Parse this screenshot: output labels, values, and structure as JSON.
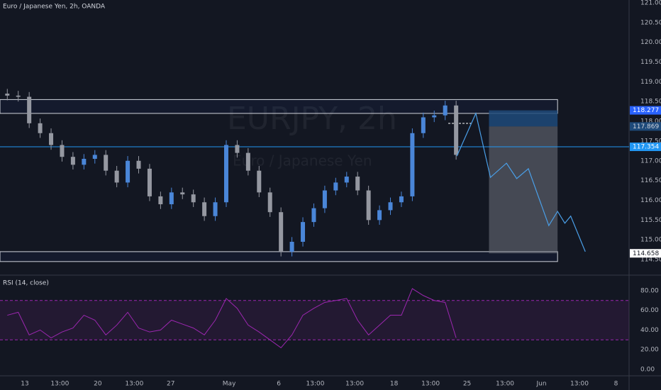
{
  "chart_data": [
    {
      "type": "candlestick",
      "title": "Euro / Japanese Yen, 2h, OANDA",
      "watermark": "EURJPY, 2h",
      "watermark_subtitle": "Euro / Japanese Yen",
      "x": [
        -1.2,
        -0.45,
        0.3,
        1.05,
        1.8,
        2.55,
        3.3,
        4.05,
        4.8,
        5.55,
        6.3,
        7.05,
        7.8,
        8.55,
        9.3,
        10.05,
        10.8,
        11.55,
        12.3,
        13.05,
        13.8,
        14.55,
        15.3,
        16.05,
        16.8,
        17.55,
        18.3,
        19.05,
        19.8,
        20.55,
        21.3,
        22.05,
        22.8,
        23.55,
        24.3,
        25.05,
        25.8,
        26.55,
        27.3,
        28.05,
        28.8,
        29.55
      ],
      "open": [
        118.7,
        118.65,
        118.62,
        117.95,
        117.7,
        117.4,
        117.1,
        116.9,
        117.05,
        117.15,
        116.75,
        116.45,
        117.0,
        116.8,
        116.1,
        115.9,
        116.2,
        116.15,
        115.95,
        115.6,
        115.95,
        117.4,
        117.2,
        116.75,
        116.2,
        115.7,
        114.7,
        114.95,
        115.45,
        115.8,
        116.25,
        116.45,
        116.6,
        116.25,
        115.5,
        115.75,
        115.95,
        116.1,
        117.7,
        118.1,
        118.15,
        118.4
      ],
      "high": [
        118.82,
        118.77,
        118.74,
        118.07,
        117.82,
        117.52,
        117.22,
        117.17,
        117.27,
        117.27,
        116.87,
        117.12,
        117.12,
        116.92,
        116.22,
        116.32,
        116.32,
        116.27,
        116.07,
        116.07,
        117.52,
        117.52,
        117.32,
        116.87,
        116.32,
        115.82,
        115.07,
        115.57,
        115.92,
        116.37,
        116.57,
        116.72,
        116.72,
        116.37,
        115.87,
        116.07,
        116.22,
        117.82,
        118.22,
        118.27,
        118.52,
        118.52
      ],
      "low": [
        118.53,
        118.5,
        117.83,
        117.58,
        117.28,
        116.98,
        116.78,
        116.78,
        116.93,
        116.63,
        116.33,
        116.33,
        116.68,
        115.98,
        115.78,
        115.78,
        116.03,
        115.83,
        115.48,
        115.48,
        115.83,
        117.08,
        116.63,
        116.08,
        115.58,
        114.58,
        114.58,
        114.83,
        115.33,
        115.68,
        116.13,
        116.33,
        116.13,
        115.38,
        115.38,
        115.63,
        115.83,
        115.98,
        117.58,
        117.98,
        118.03,
        117.03
      ],
      "close": [
        118.65,
        118.62,
        117.95,
        117.7,
        117.4,
        117.1,
        116.9,
        117.05,
        117.15,
        116.75,
        116.45,
        117.0,
        116.8,
        116.1,
        115.9,
        116.2,
        116.15,
        115.95,
        115.6,
        115.95,
        117.4,
        117.2,
        116.75,
        116.2,
        115.7,
        114.7,
        114.95,
        115.45,
        115.8,
        116.25,
        116.45,
        116.6,
        116.25,
        115.5,
        115.75,
        115.95,
        116.1,
        117.7,
        118.1,
        118.15,
        118.4,
        117.15
      ],
      "up_color": "#4a86d8",
      "down_color": "#9598a1",
      "xlim": [
        -1.7,
        41.4
      ],
      "xticks": [
        {
          "value": 0,
          "label": "13"
        },
        {
          "value": 2.4,
          "label": "13:00"
        },
        {
          "value": 5,
          "label": "20"
        },
        {
          "value": 7.5,
          "label": "13:00"
        },
        {
          "value": 10,
          "label": "27"
        },
        {
          "value": 14,
          "label": "May"
        },
        {
          "value": 17.4,
          "label": "6"
        },
        {
          "value": 19.9,
          "label": "13:00"
        },
        {
          "value": 22.6,
          "label": "13:00"
        },
        {
          "value": 25.3,
          "label": "18"
        },
        {
          "value": 27.8,
          "label": "13:00"
        },
        {
          "value": 30.3,
          "label": "25"
        },
        {
          "value": 32.9,
          "label": "13:00"
        },
        {
          "value": 35.4,
          "label": "Jun"
        },
        {
          "value": 38,
          "label": "13:00"
        },
        {
          "value": 40.5,
          "label": "8"
        }
      ],
      "ylim": [
        114.16,
        121.07
      ],
      "yticks": [
        {
          "value": 114.5,
          "label": "114.500"
        },
        {
          "value": 115,
          "label": "115.000"
        },
        {
          "value": 115.5,
          "label": "115.500"
        },
        {
          "value": 116,
          "label": "116.000"
        },
        {
          "value": 116.5,
          "label": "116.500"
        },
        {
          "value": 117,
          "label": "117.000"
        },
        {
          "value": 117.5,
          "label": "117.500"
        },
        {
          "value": 118,
          "label": "118.000"
        },
        {
          "value": 118.5,
          "label": "118.500"
        },
        {
          "value": 119,
          "label": "119.000"
        },
        {
          "value": 119.5,
          "label": "119.500"
        },
        {
          "value": 120,
          "label": "120.000"
        },
        {
          "value": 120.5,
          "label": "120.500"
        },
        {
          "value": 121,
          "label": "121.000"
        }
      ],
      "zones": [
        {
          "top": 118.55,
          "bottom": 118.2,
          "x0": -1.7,
          "x1": 36.5
        },
        {
          "top": 114.7,
          "bottom": 114.45,
          "x0": -1.7,
          "x1": 36.5
        }
      ],
      "hline": 117.354,
      "position": {
        "x0": 31.8,
        "x1": 36.5,
        "stop": 118.277,
        "entry": 117.869,
        "target": 114.658
      },
      "forecast": {
        "color": "#4a9fe8",
        "x": [
          29.6,
          30.9,
          31.9,
          33.0,
          33.7,
          34.5,
          35.9,
          36.5,
          37.0,
          37.4,
          38.4
        ],
        "values": [
          117.12,
          118.2,
          116.58,
          116.94,
          116.55,
          116.8,
          115.36,
          115.72,
          115.42,
          115.6,
          114.7
        ]
      }
    },
    {
      "type": "line",
      "title": "RSI (14, close)",
      "color": "#9c27b0",
      "x": [
        -1.2,
        -0.45,
        0.3,
        1.05,
        1.8,
        2.55,
        3.3,
        4.05,
        4.8,
        5.55,
        6.3,
        7.05,
        7.8,
        8.55,
        9.3,
        10.05,
        10.8,
        11.55,
        12.3,
        13.05,
        13.8,
        14.55,
        15.3,
        16.05,
        16.8,
        17.55,
        18.3,
        19.05,
        19.8,
        20.55,
        21.3,
        22.05,
        22.8,
        23.55,
        24.3,
        25.05,
        25.8,
        26.55,
        27.3,
        28.05,
        28.8,
        29.55
      ],
      "values": [
        55,
        58,
        35,
        40,
        32,
        38,
        42,
        55,
        50,
        35,
        45,
        58,
        42,
        38,
        40,
        50,
        46,
        42,
        35,
        50,
        72,
        62,
        45,
        38,
        30,
        22,
        35,
        55,
        62,
        68,
        70,
        72,
        50,
        35,
        45,
        55,
        55,
        82,
        75,
        70,
        68,
        32
      ],
      "band": [
        30,
        70
      ],
      "ylim": [
        -6.5,
        95.7
      ],
      "yticks": [
        {
          "value": 0,
          "label": "0.00"
        },
        {
          "value": 20,
          "label": "20.00"
        },
        {
          "value": 40,
          "label": "40.00"
        },
        {
          "value": 60,
          "label": "60.00"
        },
        {
          "value": 80,
          "label": "80.00"
        }
      ]
    }
  ]
}
